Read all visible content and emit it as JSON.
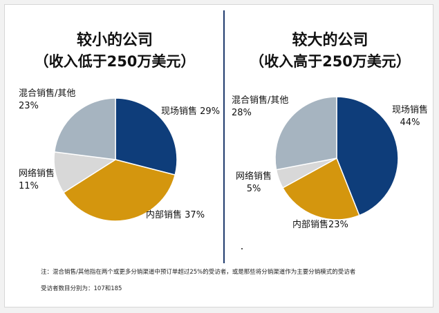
{
  "charts": [
    {
      "title_line1": "较小的公司",
      "title_line2": "（收入低于250万美元）",
      "chart_data": {
        "type": "pie",
        "title": "较小的公司（收入低于250万美元）",
        "slices": [
          {
            "label": "现场销售",
            "value": 29,
            "display": "29%",
            "color": "#0e3d7a"
          },
          {
            "label": "内部销售",
            "value": 37,
            "display": "37%",
            "color": "#d4960e"
          },
          {
            "label": "网络销售",
            "value": 11,
            "display": "11%",
            "color": "#d8d8d8"
          },
          {
            "label": "混合销售/其他",
            "value": 23,
            "display": "23%",
            "color": "#a6b4c0"
          }
        ]
      }
    },
    {
      "title_line1": "较大的公司",
      "title_line2": "（收入高于250万美元）",
      "chart_data": {
        "type": "pie",
        "title": "较大的公司（收入高于250万美元）",
        "slices": [
          {
            "label": "现场销售",
            "value": 44,
            "display": "44%",
            "color": "#0e3d7a"
          },
          {
            "label": "内部销售",
            "value": 23,
            "display": "23%",
            "color": "#d4960e"
          },
          {
            "label": "网络销售",
            "value": 5,
            "display": "5%",
            "color": "#d8d8d8"
          },
          {
            "label": "混合销售/其他",
            "value": 28,
            "display": "28%",
            "color": "#a6b4c0"
          }
        ]
      }
    }
  ],
  "footnote": "注：混合销售/其他指在两个或更多分销渠道中预订单超过25%的受访者，或是那些将分销渠道作为主要分销模式的受访者",
  "sample_note": "受访者数目分别为：107和185"
}
